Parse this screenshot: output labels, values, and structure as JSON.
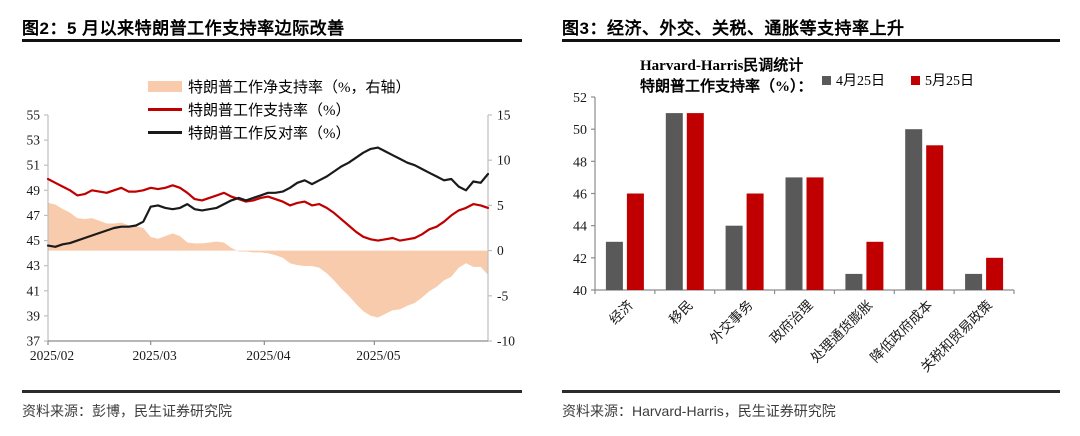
{
  "figures": [
    {
      "title": "图2：5 月以来特朗普工作支持率边际改善",
      "source": "资料来源：彭博，民生证券研究院"
    },
    {
      "title": "图3：经济、外交、关税、通胀等支持率上升",
      "source": "资料来源：Harvard-Harris，民生证券研究院"
    }
  ],
  "chart_data": [
    {
      "type": "line",
      "title": "图2：5 月以来特朗普工作支持率边际改善",
      "x_tick_labels": [
        "2025/02",
        "2025/03",
        "2025/04",
        "2025/05"
      ],
      "x_tick_days": [
        0,
        28,
        59,
        89
      ],
      "x_total_days": 120,
      "point_interval_days": 2,
      "axis_left": {
        "min": 37,
        "max": 55,
        "step": 2
      },
      "axis_right": {
        "min": -10,
        "max": 15,
        "step": 5
      },
      "legend": [
        {
          "label": "特朗普工作净支持率（%，右轴）",
          "type": "area",
          "color": "#F8CBAD"
        },
        {
          "label": "特朗普工作支持率（%）",
          "type": "line",
          "color": "#C00000"
        },
        {
          "label": "特朗普工作反对率（%）",
          "type": "line",
          "color": "#1A1A1A"
        }
      ],
      "series": [
        {
          "name": "特朗普工作净支持率（%，右轴）",
          "axis": "right",
          "render": "area",
          "color": "#F8CBAD",
          "values": [
            5.3,
            5.1,
            4.6,
            4.2,
            3.6,
            3.5,
            3.6,
            3.3,
            3.0,
            3.0,
            3.1,
            2.8,
            2.7,
            2.5,
            1.5,
            1.3,
            1.6,
            1.9,
            1.6,
            0.9,
            0.8,
            0.8,
            0.9,
            1.0,
            0.9,
            0.3,
            -0.1,
            -0.1,
            -0.2,
            -0.2,
            -0.3,
            -0.5,
            -0.8,
            -1.4,
            -1.6,
            -1.7,
            -1.7,
            -1.9,
            -2.5,
            -3.3,
            -4.2,
            -5.0,
            -5.9,
            -6.7,
            -7.2,
            -7.4,
            -7.0,
            -6.6,
            -6.5,
            -6.1,
            -5.8,
            -5.2,
            -4.5,
            -4.0,
            -3.3,
            -2.9,
            -1.9,
            -1.4,
            -1.8,
            -1.8,
            -2.7
          ]
        },
        {
          "name": "特朗普工作支持率（%）",
          "axis": "left",
          "render": "line",
          "color": "#C00000",
          "values": [
            49.9,
            49.6,
            49.3,
            49.0,
            48.6,
            48.7,
            49.0,
            48.9,
            48.8,
            49.0,
            49.2,
            48.9,
            48.9,
            49.0,
            49.2,
            49.1,
            49.2,
            49.4,
            49.2,
            48.8,
            48.3,
            48.2,
            48.4,
            48.6,
            48.8,
            48.5,
            48.3,
            48.1,
            48.2,
            48.4,
            48.5,
            48.3,
            48.1,
            47.8,
            48.0,
            48.1,
            47.8,
            47.9,
            47.6,
            47.2,
            46.7,
            46.2,
            45.7,
            45.3,
            45.1,
            45.0,
            45.1,
            45.2,
            45.0,
            45.1,
            45.2,
            45.5,
            45.9,
            46.1,
            46.5,
            47.0,
            47.4,
            47.6,
            47.9,
            47.8,
            47.6
          ]
        },
        {
          "name": "特朗普工作反对率（%）",
          "axis": "left",
          "render": "line",
          "color": "#1A1A1A",
          "values": [
            44.6,
            44.5,
            44.7,
            44.8,
            45.0,
            45.2,
            45.4,
            45.6,
            45.8,
            46.0,
            46.1,
            46.1,
            46.2,
            46.5,
            47.7,
            47.8,
            47.6,
            47.5,
            47.6,
            47.9,
            47.5,
            47.4,
            47.5,
            47.6,
            47.9,
            48.2,
            48.4,
            48.2,
            48.4,
            48.6,
            48.8,
            48.8,
            48.9,
            49.2,
            49.6,
            49.8,
            49.5,
            49.8,
            50.1,
            50.5,
            50.9,
            51.2,
            51.6,
            52.0,
            52.3,
            52.4,
            52.1,
            51.8,
            51.5,
            51.2,
            51.0,
            50.7,
            50.4,
            50.1,
            49.8,
            49.9,
            49.3,
            49.0,
            49.7,
            49.6,
            50.3
          ]
        }
      ]
    },
    {
      "type": "bar",
      "title": "Harvard-Harris民调统计",
      "subtitle": "特朗普工作支持率（%）：",
      "categories": [
        "经济",
        "移民",
        "外交事务",
        "政府治理",
        "处理通货膨胀",
        "降低政府成本",
        "关税和贸易政策"
      ],
      "series": [
        {
          "name": "4月25日",
          "color": "#595959",
          "values": [
            43,
            51,
            44,
            47,
            41,
            50,
            41
          ]
        },
        {
          "name": "5月25日",
          "color": "#C00000",
          "values": [
            46,
            51,
            46,
            47,
            43,
            49,
            42
          ]
        }
      ],
      "ylim": [
        40,
        52
      ],
      "ytick_step": 2,
      "legend_position": "top-right",
      "grid": false
    }
  ],
  "colors": {
    "net_area": "#F8CBAD",
    "approve_line": "#C00000",
    "disapprove_line": "#1A1A1A",
    "bar_april": "#595959",
    "bar_may": "#C00000"
  }
}
